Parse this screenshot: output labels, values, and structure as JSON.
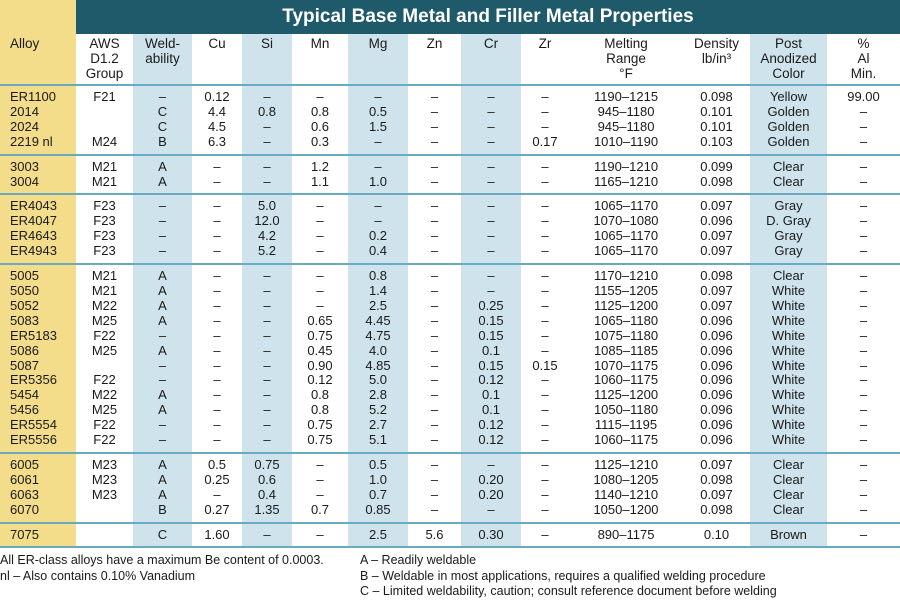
{
  "title": "Typical Base Metal and Filler Metal Properties",
  "headers": [
    [
      "Alloy"
    ],
    [
      "AWS",
      "D1.2",
      "Group"
    ],
    [
      "Weld-",
      "ability"
    ],
    [
      "Cu"
    ],
    [
      "Si"
    ],
    [
      "Mn"
    ],
    [
      "Mg"
    ],
    [
      "Zn"
    ],
    [
      "Cr"
    ],
    [
      "Zr"
    ],
    [
      "Melting",
      "Range",
      "°F"
    ],
    [
      "Density",
      "lb/in³"
    ],
    [
      "Post",
      "Anodized",
      "Color"
    ],
    [
      "%",
      "Al",
      "Min."
    ]
  ],
  "groups": [
    [
      [
        "ER1100",
        "F21",
        "–",
        "0.12",
        "–",
        "–",
        "–",
        "–",
        "–",
        "–",
        "1190–1215",
        "0.098",
        "Yellow",
        "99.00"
      ],
      [
        "2014",
        "",
        "C",
        "4.4",
        "0.8",
        "0.8",
        "0.5",
        "–",
        "–",
        "–",
        "945–1180",
        "0.101",
        "Golden",
        "–"
      ],
      [
        "2024",
        "",
        "C",
        "4.5",
        "–",
        "0.6",
        "1.5",
        "–",
        "–",
        "–",
        "945–1180",
        "0.101",
        "Golden",
        "–"
      ],
      [
        "2219 nl",
        "M24",
        "B",
        "6.3",
        "–",
        "0.3",
        "–",
        "–",
        "–",
        "0.17",
        "1010–1190",
        "0.103",
        "Golden",
        "–"
      ]
    ],
    [
      [
        "3003",
        "M21",
        "A",
        "–",
        "–",
        "1.2",
        "–",
        "–",
        "–",
        "–",
        "1190–1210",
        "0.099",
        "Clear",
        "–"
      ],
      [
        "3004",
        "M21",
        "A",
        "–",
        "–",
        "1.1",
        "1.0",
        "–",
        "–",
        "–",
        "1165–1210",
        "0.098",
        "Clear",
        "–"
      ]
    ],
    [
      [
        "ER4043",
        "F23",
        "–",
        "–",
        "5.0",
        "–",
        "–",
        "–",
        "–",
        "–",
        "1065–1170",
        "0.097",
        "Gray",
        "–"
      ],
      [
        "ER4047",
        "F23",
        "–",
        "–",
        "12.0",
        "–",
        "–",
        "–",
        "–",
        "–",
        "1070–1080",
        "0.096",
        "D. Gray",
        "–"
      ],
      [
        "ER4643",
        "F23",
        "–",
        "–",
        "4.2",
        "–",
        "0.2",
        "–",
        "–",
        "–",
        "1065–1170",
        "0.097",
        "Gray",
        "–"
      ],
      [
        "ER4943",
        "F23",
        "–",
        "–",
        "5.2",
        "–",
        "0.4",
        "–",
        "–",
        "–",
        "1065–1170",
        "0.097",
        "Gray",
        "–"
      ]
    ],
    [
      [
        "5005",
        "M21",
        "A",
        "–",
        "–",
        "–",
        "0.8",
        "–",
        "–",
        "–",
        "1170–1210",
        "0.098",
        "Clear",
        "–"
      ],
      [
        "5050",
        "M21",
        "A",
        "–",
        "–",
        "–",
        "1.4",
        "–",
        "–",
        "–",
        "1155–1205",
        "0.097",
        "White",
        "–"
      ],
      [
        "5052",
        "M22",
        "A",
        "–",
        "–",
        "–",
        "2.5",
        "–",
        "0.25",
        "–",
        "1125–1200",
        "0.097",
        "White",
        "–"
      ],
      [
        "5083",
        "M25",
        "A",
        "–",
        "–",
        "0.65",
        "4.45",
        "–",
        "0.15",
        "–",
        "1065–1180",
        "0.096",
        "White",
        "–"
      ],
      [
        "ER5183",
        "F22",
        "–",
        "–",
        "–",
        "0.75",
        "4.75",
        "–",
        "0.15",
        "–",
        "1075–1180",
        "0.096",
        "White",
        "–"
      ],
      [
        "5086",
        "M25",
        "A",
        "–",
        "–",
        "0.45",
        "4.0",
        "–",
        "0.1",
        "–",
        "1085–1185",
        "0.096",
        "White",
        "–"
      ],
      [
        "5087",
        "",
        "–",
        "–",
        "–",
        "0.90",
        "4.85",
        "–",
        "0.15",
        "0.15",
        "1070–1175",
        "0.096",
        "White",
        "–"
      ],
      [
        "ER5356",
        "F22",
        "–",
        "–",
        "–",
        "0.12",
        "5.0",
        "–",
        "0.12",
        "–",
        "1060–1175",
        "0.096",
        "White",
        "–"
      ],
      [
        "5454",
        "M22",
        "A",
        "–",
        "–",
        "0.8",
        "2.8",
        "–",
        "0.1",
        "–",
        "1125–1200",
        "0.096",
        "White",
        "–"
      ],
      [
        "5456",
        "M25",
        "A",
        "–",
        "–",
        "0.8",
        "5.2",
        "–",
        "0.1",
        "–",
        "1050–1180",
        "0.096",
        "White",
        "–"
      ],
      [
        "ER5554",
        "F22",
        "–",
        "–",
        "–",
        "0.75",
        "2.7",
        "–",
        "0.12",
        "–",
        "1115–1195",
        "0.096",
        "White",
        "–"
      ],
      [
        "ER5556",
        "F22",
        "–",
        "–",
        "–",
        "0.75",
        "5.1",
        "–",
        "0.12",
        "–",
        "1060–1175",
        "0.096",
        "White",
        "–"
      ]
    ],
    [
      [
        "6005",
        "M23",
        "A",
        "0.5",
        "0.75",
        "–",
        "0.5",
        "–",
        "–",
        "–",
        "1125–1210",
        "0.097",
        "Clear",
        "–"
      ],
      [
        "6061",
        "M23",
        "A",
        "0.25",
        "0.6",
        "–",
        "1.0",
        "–",
        "0.20",
        "–",
        "1080–1205",
        "0.098",
        "Clear",
        "–"
      ],
      [
        "6063",
        "M23",
        "A",
        "–",
        "0.4",
        "–",
        "0.7",
        "–",
        "0.20",
        "–",
        "1140–1210",
        "0.097",
        "Clear",
        "–"
      ],
      [
        "6070",
        "",
        "B",
        "0.27",
        "1.35",
        "0.7",
        "0.85",
        "–",
        "–",
        "–",
        "1050–1200",
        "0.098",
        "Clear",
        "–"
      ]
    ],
    [
      [
        "7075",
        "",
        "C",
        "1.60",
        "–",
        "–",
        "2.5",
        "5.6",
        "0.30",
        "–",
        "890–1175",
        "0.10",
        "Brown",
        "–"
      ]
    ]
  ],
  "footnotes_left": [
    "All ER-class alloys have a maximum Be content of 0.0003.",
    "nl –  Also contains 0.10% Vanadium"
  ],
  "footnotes_right": [
    "A – Readily weldable",
    "B – Weldable in most applications, requires a qualified welding procedure",
    "C – Limited weldability, caution; consult reference document before welding"
  ],
  "colors": {
    "title_band": "#1f5a6b",
    "alloy_column": "#f3dc8a",
    "alternate_column": "#cfe3ec",
    "rule": "#6aaac0"
  }
}
